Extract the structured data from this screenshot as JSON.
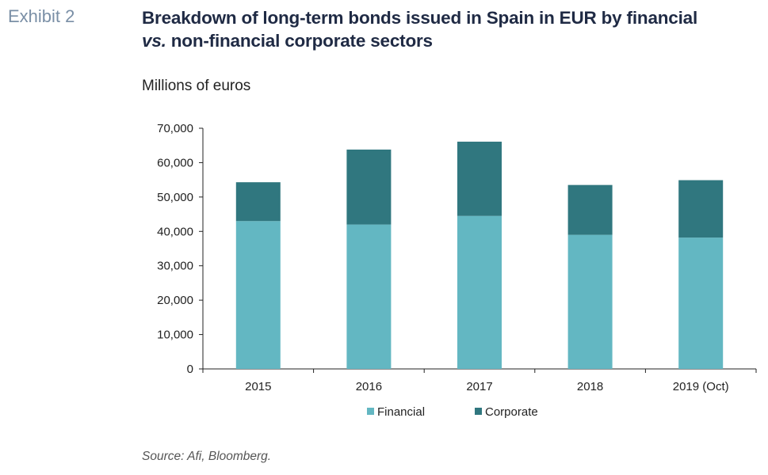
{
  "header": {
    "exhibit_label": "Exhibit 2",
    "title_line1": "Breakdown of long-term bonds issued in Spain in EUR by financial",
    "title_line2_italic": "vs.",
    "title_line2_rest": " non-financial corporate sectors"
  },
  "units_label": "Millions of euros",
  "source": "Source: Afi, Bloomberg.",
  "colors": {
    "financial": "#63b7c2",
    "corporate": "#30777f",
    "axis": "#222222"
  },
  "chart_data": {
    "type": "bar",
    "stacked": true,
    "categories": [
      "2015",
      "2016",
      "2017",
      "2018",
      "2019 (Oct)"
    ],
    "series": [
      {
        "name": "Financial",
        "values": [
          43000,
          42000,
          44500,
          39000,
          38200
        ]
      },
      {
        "name": "Corporate",
        "values": [
          11300,
          21800,
          21600,
          14500,
          16700
        ]
      }
    ],
    "ylim": [
      0,
      70000
    ],
    "yticks": [
      0,
      10000,
      20000,
      30000,
      40000,
      50000,
      60000,
      70000
    ],
    "ytick_labels": [
      "0",
      "10,000",
      "20,000",
      "30,000",
      "40,000",
      "50,000",
      "60,000",
      "70,000"
    ],
    "ylabel": "Millions of euros",
    "xlabel": "",
    "legend_position": "bottom-center",
    "grid": false
  }
}
